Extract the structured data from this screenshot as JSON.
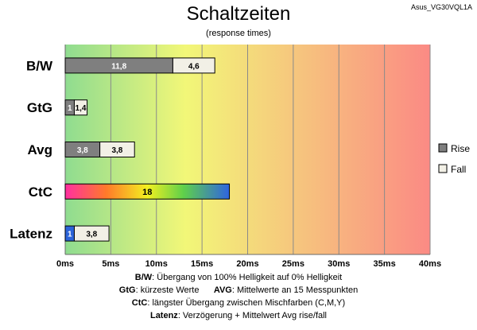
{
  "chart_data": {
    "type": "bar",
    "orientation": "horizontal",
    "stacked": true,
    "title": "Schaltzeiten",
    "subtitle": "(response times)",
    "model": "Asus_VG30VQL1A",
    "categories": [
      "B/W",
      "GtG",
      "Avg",
      "CtC",
      "Latenz"
    ],
    "series": [
      {
        "name": "Rise",
        "color": "#7f7f7f",
        "values": [
          11.8,
          1.0,
          3.8,
          null,
          null
        ]
      },
      {
        "name": "Fall",
        "color": "#f2f0e6",
        "values": [
          4.6,
          1.4,
          3.8,
          null,
          null
        ]
      }
    ],
    "ctc": {
      "value": 18,
      "label": "18"
    },
    "latency": {
      "delay": 1,
      "delay_label": "1",
      "avg": 3.8,
      "avg_label": "3,8",
      "delay_color": "#2c64d8"
    },
    "value_labels": {
      "rise": [
        "11,8",
        "1",
        "3,8",
        "",
        ""
      ],
      "fall": [
        "4,6",
        "1,4",
        "3,8",
        "",
        ""
      ]
    },
    "xlim": [
      0,
      40
    ],
    "xticks": [
      "0ms",
      "5ms",
      "10ms",
      "15ms",
      "20ms",
      "25ms",
      "30ms",
      "35ms",
      "40ms"
    ],
    "xtick_values": [
      0,
      5,
      10,
      15,
      20,
      25,
      30,
      35,
      40
    ],
    "grid": true,
    "legend": {
      "placement": "right",
      "entries": [
        "Rise",
        "Fall"
      ]
    },
    "background_gradient": [
      "#8fdc90",
      "#f2f778",
      "#fb8a84"
    ]
  },
  "notes": [
    {
      "key": "B/W",
      "text": ":  Übergang von 100% Helligkeit auf 0% Helligkeit"
    },
    {
      "key": "GtG",
      "text": ": kürzeste  Werte",
      "key2": "AVG",
      "text2": ": Mittelwerte  an 15 Messpunkten"
    },
    {
      "key": "CtC",
      "text": ": längster Übergang  zwischen Mischfarben  (C,M,Y)"
    },
    {
      "key": "Latenz",
      "text": ": Verzögerung  + Mittelwert  Avg rise/fall"
    }
  ]
}
